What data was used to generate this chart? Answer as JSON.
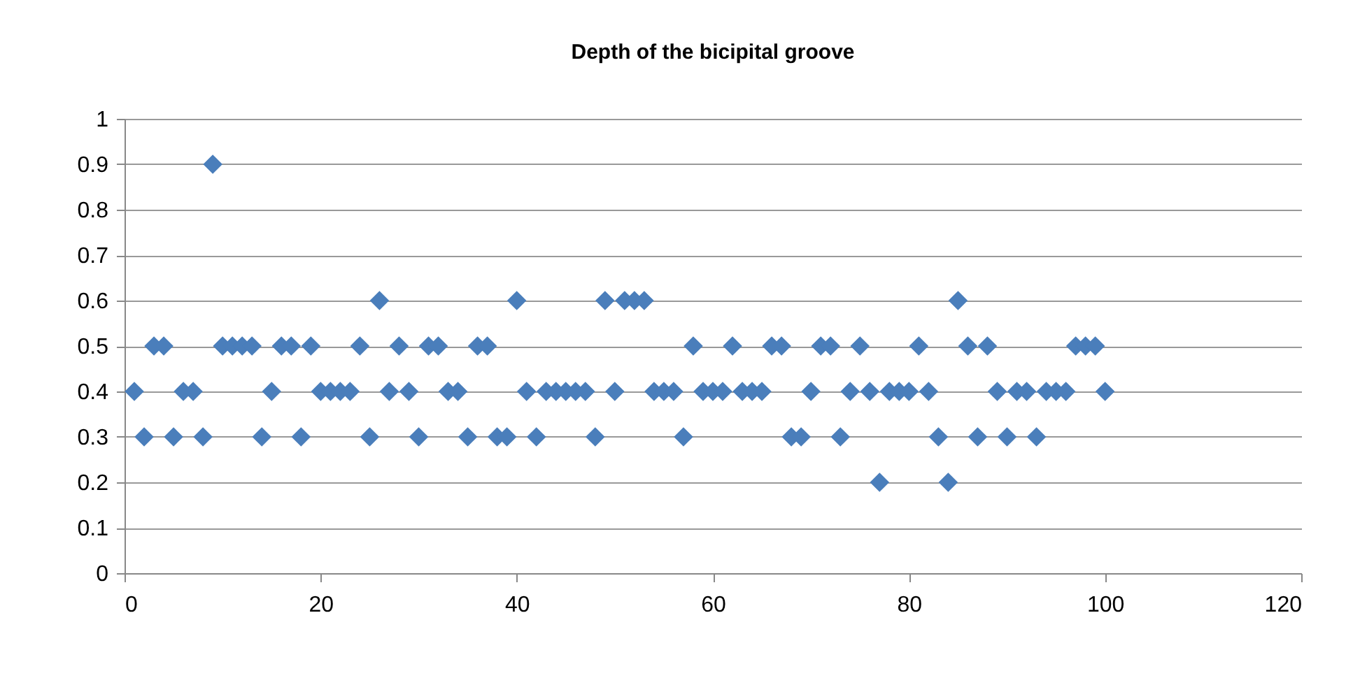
{
  "chart_data": {
    "type": "scatter",
    "title": "Depth of the  bicipital groove",
    "x": [
      1,
      2,
      3,
      4,
      5,
      6,
      7,
      8,
      9,
      10,
      11,
      12,
      13,
      14,
      15,
      16,
      17,
      18,
      19,
      20,
      21,
      22,
      23,
      24,
      25,
      26,
      27,
      28,
      29,
      30,
      31,
      32,
      33,
      34,
      35,
      36,
      37,
      38,
      39,
      40,
      41,
      42,
      43,
      44,
      45,
      46,
      47,
      48,
      49,
      50,
      51,
      52,
      53,
      54,
      55,
      56,
      57,
      58,
      59,
      60,
      61,
      62,
      63,
      64,
      65,
      66,
      67,
      68,
      69,
      70,
      71,
      72,
      73,
      74,
      75,
      76,
      77,
      78,
      79,
      80,
      81,
      82,
      83,
      84,
      85,
      86,
      87,
      88,
      89,
      90,
      91,
      92,
      93,
      94,
      95,
      96,
      97,
      98,
      99,
      100
    ],
    "values": [
      0.4,
      0.3,
      0.5,
      0.5,
      0.3,
      0.4,
      0.4,
      0.3,
      0.9,
      0.5,
      0.5,
      0.5,
      0.5,
      0.3,
      0.4,
      0.5,
      0.5,
      0.3,
      0.5,
      0.4,
      0.4,
      0.4,
      0.4,
      0.5,
      0.3,
      0.6,
      0.4,
      0.5,
      0.4,
      0.3,
      0.5,
      0.5,
      0.4,
      0.4,
      0.3,
      0.5,
      0.5,
      0.3,
      0.3,
      0.6,
      0.4,
      0.3,
      0.4,
      0.4,
      0.4,
      0.4,
      0.4,
      0.3,
      0.6,
      0.4,
      0.6,
      0.6,
      0.6,
      0.4,
      0.4,
      0.4,
      0.3,
      0.5,
      0.4,
      0.4,
      0.4,
      0.5,
      0.4,
      0.4,
      0.4,
      0.5,
      0.5,
      0.3,
      0.3,
      0.4,
      0.5,
      0.5,
      0.3,
      0.4,
      0.5,
      0.4,
      0.2,
      0.4,
      0.4,
      0.4,
      0.5,
      0.4,
      0.3,
      0.2,
      0.6,
      0.5,
      0.3,
      0.5,
      0.4,
      0.3,
      0.4,
      0.4,
      0.3,
      0.4,
      0.4,
      0.4,
      0.5,
      0.5,
      0.5,
      0.4
    ],
    "color": "#4a7ebb",
    "marker": "diamond",
    "grid": "y",
    "xlim": [
      0,
      120
    ],
    "xticks": [
      0,
      20,
      40,
      60,
      80,
      100,
      120
    ],
    "ylim": [
      0,
      1
    ],
    "yticks": [
      0,
      0.1,
      0.2,
      0.3,
      0.4,
      0.5,
      0.6,
      0.7,
      0.8,
      0.9,
      1
    ]
  }
}
